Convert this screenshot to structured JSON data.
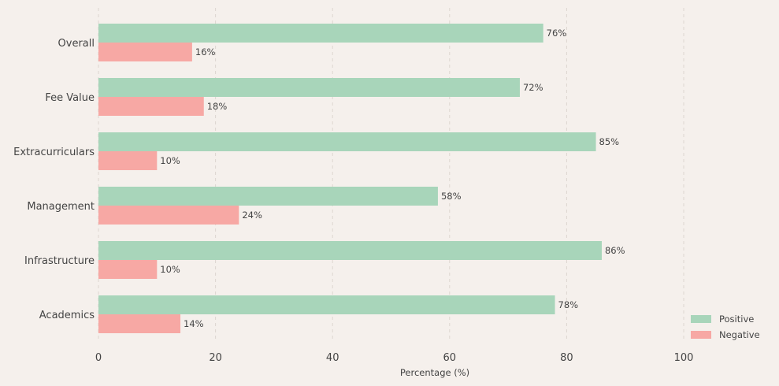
{
  "chart_data": {
    "type": "bar",
    "orientation": "horizontal",
    "categories": [
      "Overall",
      "Fee Value",
      "Extracurriculars",
      "Management",
      "Infrastructure",
      "Academics"
    ],
    "series": [
      {
        "name": "Positive",
        "values": [
          76,
          72,
          85,
          58,
          86,
          78
        ],
        "color": "#a8d5ba"
      },
      {
        "name": "Negative",
        "values": [
          16,
          18,
          10,
          24,
          10,
          14
        ],
        "color": "#f7a8a4"
      }
    ],
    "value_suffix": "%",
    "xlabel": "Percentage (%)",
    "xlim": [
      0,
      115
    ],
    "xticks": [
      0,
      20,
      40,
      60,
      80,
      100
    ],
    "grid": true,
    "legend_position": "bottom-right"
  }
}
